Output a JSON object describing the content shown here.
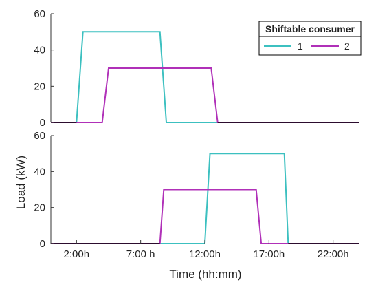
{
  "chart_data": {
    "type": "line",
    "xlabel": "Time (hh:mm)",
    "ylabel": "Load (kW)",
    "x_ticks": [
      {
        "value": 2,
        "label": "2:00h"
      },
      {
        "value": 7,
        "label": "7:00 h"
      },
      {
        "value": 12,
        "label": "12:00h"
      },
      {
        "value": 17,
        "label": "17:00h"
      },
      {
        "value": 22,
        "label": "22:00h"
      }
    ],
    "xlim": [
      0,
      24
    ],
    "legend": {
      "title": "Shiftable consumer",
      "placement": "top-right"
    },
    "colors": {
      "series1": "#3cc0c0",
      "series2": "#b030b8",
      "axis": "#333333",
      "baseline": "#000000"
    },
    "panels": [
      {
        "ylim": [
          0,
          60
        ],
        "y_ticks": [
          0,
          20,
          40,
          60
        ],
        "series": [
          {
            "name": "1",
            "x": [
              0,
              2.0,
              2.5,
              8.5,
              9.0,
              24
            ],
            "y": [
              0,
              0,
              50,
              50,
              0,
              0
            ]
          },
          {
            "name": "2",
            "x": [
              0,
              4.0,
              4.5,
              12.5,
              13.0,
              24
            ],
            "y": [
              0,
              0,
              30,
              30,
              0,
              0
            ]
          }
        ]
      },
      {
        "ylim": [
          0,
          60
        ],
        "y_ticks": [
          0,
          20,
          40,
          60
        ],
        "series": [
          {
            "name": "1",
            "x": [
              0,
              12.0,
              12.4,
              18.2,
              18.5,
              24
            ],
            "y": [
              0,
              0,
              50,
              50,
              0,
              0
            ]
          },
          {
            "name": "2",
            "x": [
              0,
              8.5,
              8.8,
              16.0,
              16.4,
              24
            ],
            "y": [
              0,
              0,
              30,
              30,
              0,
              0
            ]
          }
        ]
      }
    ]
  }
}
